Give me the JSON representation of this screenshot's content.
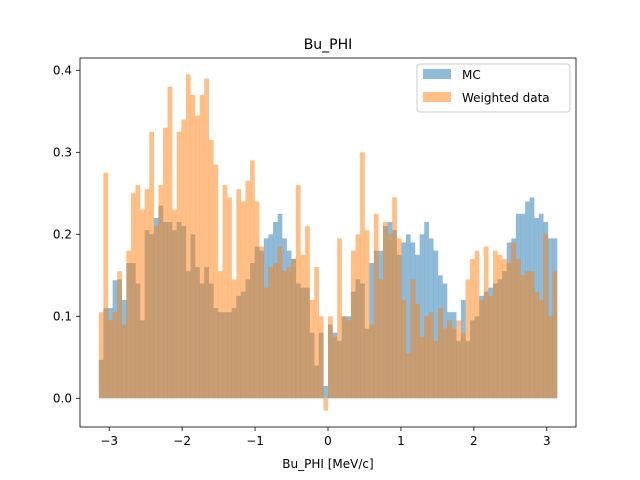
{
  "chart_data": {
    "type": "histogram",
    "title": "Bu_PHI",
    "xlabel": "Bu_PHI [MeV/c]",
    "ylabel": "",
    "xlim": [
      -3.4,
      3.4
    ],
    "ylim": [
      -0.035,
      0.415
    ],
    "xticks": [
      -3,
      -2,
      -1,
      0,
      1,
      2,
      3
    ],
    "xtick_labels": [
      "−3",
      "−2",
      "−1",
      "0",
      "1",
      "2",
      "3"
    ],
    "yticks": [
      0.0,
      0.1,
      0.2,
      0.3,
      0.4
    ],
    "ytick_labels": [
      "0.0",
      "0.1",
      "0.2",
      "0.3",
      "0.4"
    ],
    "bin_range": [
      -3.14159,
      3.14159
    ],
    "n_bins": 100,
    "legend_position": "upper right",
    "series": [
      {
        "name": "MC",
        "color": "#1f77b4",
        "alpha": 0.5,
        "values": [
          0.047,
          0.11,
          0.11,
          0.144,
          0.145,
          0.12,
          0.165,
          0.165,
          0.14,
          0.095,
          0.205,
          0.2,
          0.22,
          0.235,
          0.215,
          0.215,
          0.205,
          0.215,
          0.21,
          0.155,
          0.2,
          0.16,
          0.14,
          0.16,
          0.14,
          0.11,
          0.105,
          0.105,
          0.105,
          0.11,
          0.125,
          0.13,
          0.145,
          0.165,
          0.185,
          0.18,
          0.195,
          0.2,
          0.215,
          0.225,
          0.195,
          0.18,
          0.17,
          0.14,
          0.135,
          0.135,
          0.08,
          0.04,
          0.08,
          0.015,
          0.09,
          0.08,
          0.07,
          0.1,
          0.1,
          0.13,
          0.145,
          0.14,
          0.085,
          0.165,
          0.18,
          0.18,
          0.21,
          0.215,
          0.205,
          0.175,
          0.19,
          0.2,
          0.19,
          0.175,
          0.2,
          0.215,
          0.195,
          0.18,
          0.15,
          0.14,
          0.105,
          0.105,
          0.07,
          0.12,
          0.07,
          0.095,
          0.1,
          0.125,
          0.13,
          0.135,
          0.14,
          0.145,
          0.155,
          0.19,
          0.195,
          0.225,
          0.225,
          0.24,
          0.245,
          0.22,
          0.225,
          0.215,
          0.195,
          0.195
        ]
      },
      {
        "name": "Weighted data",
        "color": "#ff7f0e",
        "alpha": 0.5,
        "values": [
          0.105,
          0.275,
          0.095,
          0.105,
          0.155,
          0.09,
          0.18,
          0.25,
          0.26,
          0.23,
          0.255,
          0.325,
          0.21,
          0.26,
          0.33,
          0.38,
          0.23,
          0.325,
          0.34,
          0.395,
          0.37,
          0.345,
          0.37,
          0.39,
          0.315,
          0.285,
          0.155,
          0.26,
          0.245,
          0.145,
          0.255,
          0.24,
          0.265,
          0.29,
          0.24,
          0.185,
          0.135,
          0.16,
          0.165,
          0.185,
          0.155,
          0.16,
          0.17,
          0.26,
          0.175,
          0.21,
          0.12,
          0.16,
          0.1,
          -0.015,
          0.1,
          0.075,
          0.195,
          0.1,
          0.095,
          0.18,
          0.2,
          0.3,
          0.205,
          0.09,
          0.225,
          0.145,
          0.215,
          0.2,
          0.245,
          0.195,
          0.12,
          0.055,
          0.145,
          0.115,
          0.075,
          0.1,
          0.105,
          0.07,
          0.11,
          0.085,
          0.095,
          0.085,
          0.095,
          0.08,
          0.145,
          0.17,
          0.18,
          0.12,
          0.185,
          0.125,
          0.18,
          0.175,
          0.17,
          0.165,
          0.19,
          0.17,
          0.15,
          0.155,
          0.155,
          0.13,
          0.12,
          0.2,
          0.1,
          0.155
        ]
      }
    ]
  }
}
